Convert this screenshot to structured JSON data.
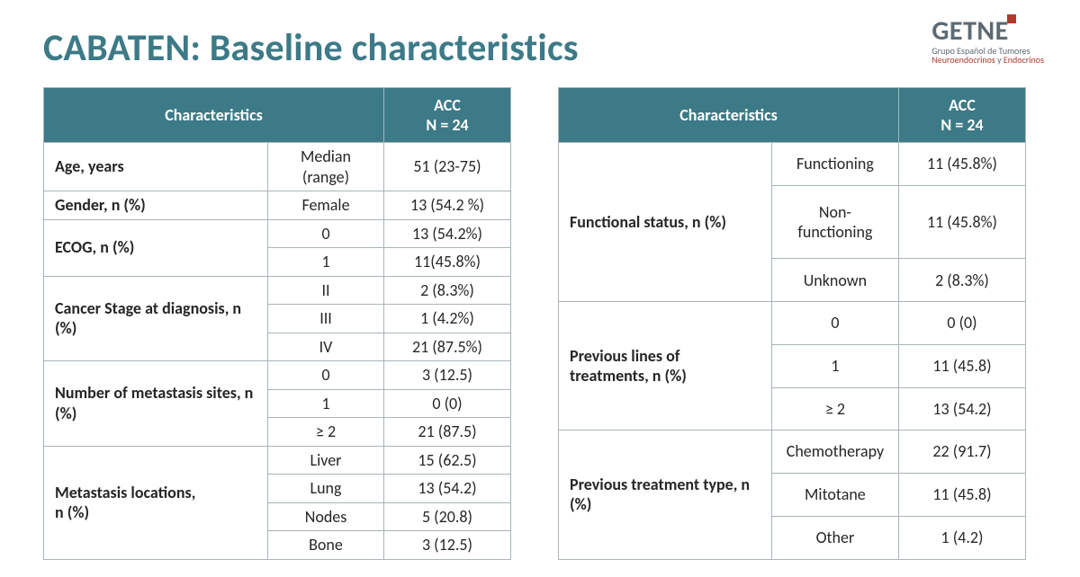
{
  "title": "CABATEN: Baseline characteristics",
  "logo": {
    "main": "GETNE",
    "sub1": "Grupo Español de Tumores",
    "sub2a": "Neuroendocrinos",
    "sub2b": " y ",
    "sub2c": "Endocrinos"
  },
  "header": {
    "char": "Characteristics",
    "val": "ACC\nN = 24"
  },
  "left": [
    {
      "char": "Age, years",
      "span": 1,
      "rows": [
        {
          "sub": "Median (range)",
          "val": "51 (23-75)"
        }
      ]
    },
    {
      "char": "Gender, n (%)",
      "span": 1,
      "rows": [
        {
          "sub": "Female",
          "val": "13 (54.2 %)"
        }
      ]
    },
    {
      "char": "ECOG, n (%)",
      "span": 2,
      "rows": [
        {
          "sub": "0",
          "val": "13 (54.2%)"
        },
        {
          "sub": "1",
          "val": "11(45.8%)"
        }
      ]
    },
    {
      "char": "Cancer Stage at diagnosis, n (%)",
      "span": 3,
      "rows": [
        {
          "sub": "II",
          "val": "2 (8.3%)"
        },
        {
          "sub": "III",
          "val": "1 (4.2%)"
        },
        {
          "sub": "IV",
          "val": "21 (87.5%)"
        }
      ]
    },
    {
      "char": "Number of metastasis sites, n (%)",
      "span": 3,
      "rows": [
        {
          "sub": "0",
          "val": "3 (12.5)"
        },
        {
          "sub": "1",
          "val": "0 (0)"
        },
        {
          "sub": "≥ 2",
          "val": "21 (87.5)"
        }
      ]
    },
    {
      "char": "Metastasis locations,\nn (%)",
      "span": 4,
      "rows": [
        {
          "sub": "Liver",
          "val": "15 (62.5)"
        },
        {
          "sub": "Lung",
          "val": "13 (54.2)"
        },
        {
          "sub": "Nodes",
          "val": "5 (20.8)"
        },
        {
          "sub": "Bone",
          "val": "3 (12.5)"
        }
      ]
    }
  ],
  "right": [
    {
      "char": "Functional status, n (%)",
      "span": 3,
      "rows": [
        {
          "sub": "Functioning",
          "val": "11 (45.8%)"
        },
        {
          "sub": "Non-functioning",
          "val": "11 (45.8%)"
        },
        {
          "sub": "Unknown",
          "val": "2 (8.3%)"
        }
      ]
    },
    {
      "char": "Previous lines of treatments, n (%)",
      "span": 3,
      "rows": [
        {
          "sub": "0",
          "val": "0 (0)"
        },
        {
          "sub": "1",
          "val": "11 (45.8)"
        },
        {
          "sub": "≥ 2",
          "val": "13 (54.2)"
        }
      ]
    },
    {
      "char": "Previous treatment type, n (%)",
      "span": 3,
      "rows": [
        {
          "sub": "Chemotherapy",
          "val": "22 (91.7)"
        },
        {
          "sub": "Mitotane",
          "val": "11 (45.8)"
        },
        {
          "sub": "Other",
          "val": "1 (4.2)"
        }
      ]
    }
  ],
  "style": {
    "title_color": "#3d7a87",
    "title_fontsize": 42,
    "header_bg": "#3d7a87",
    "header_fg": "#ffffff",
    "border_color": "#a9b4b9",
    "body_fontsize": 18,
    "logo_gray": "#5d6a73",
    "logo_red": "#b0392e",
    "slide_w": 1200,
    "slide_h": 642,
    "left_table_w": 520,
    "right_table_w": 520,
    "table_gap": 52
  }
}
